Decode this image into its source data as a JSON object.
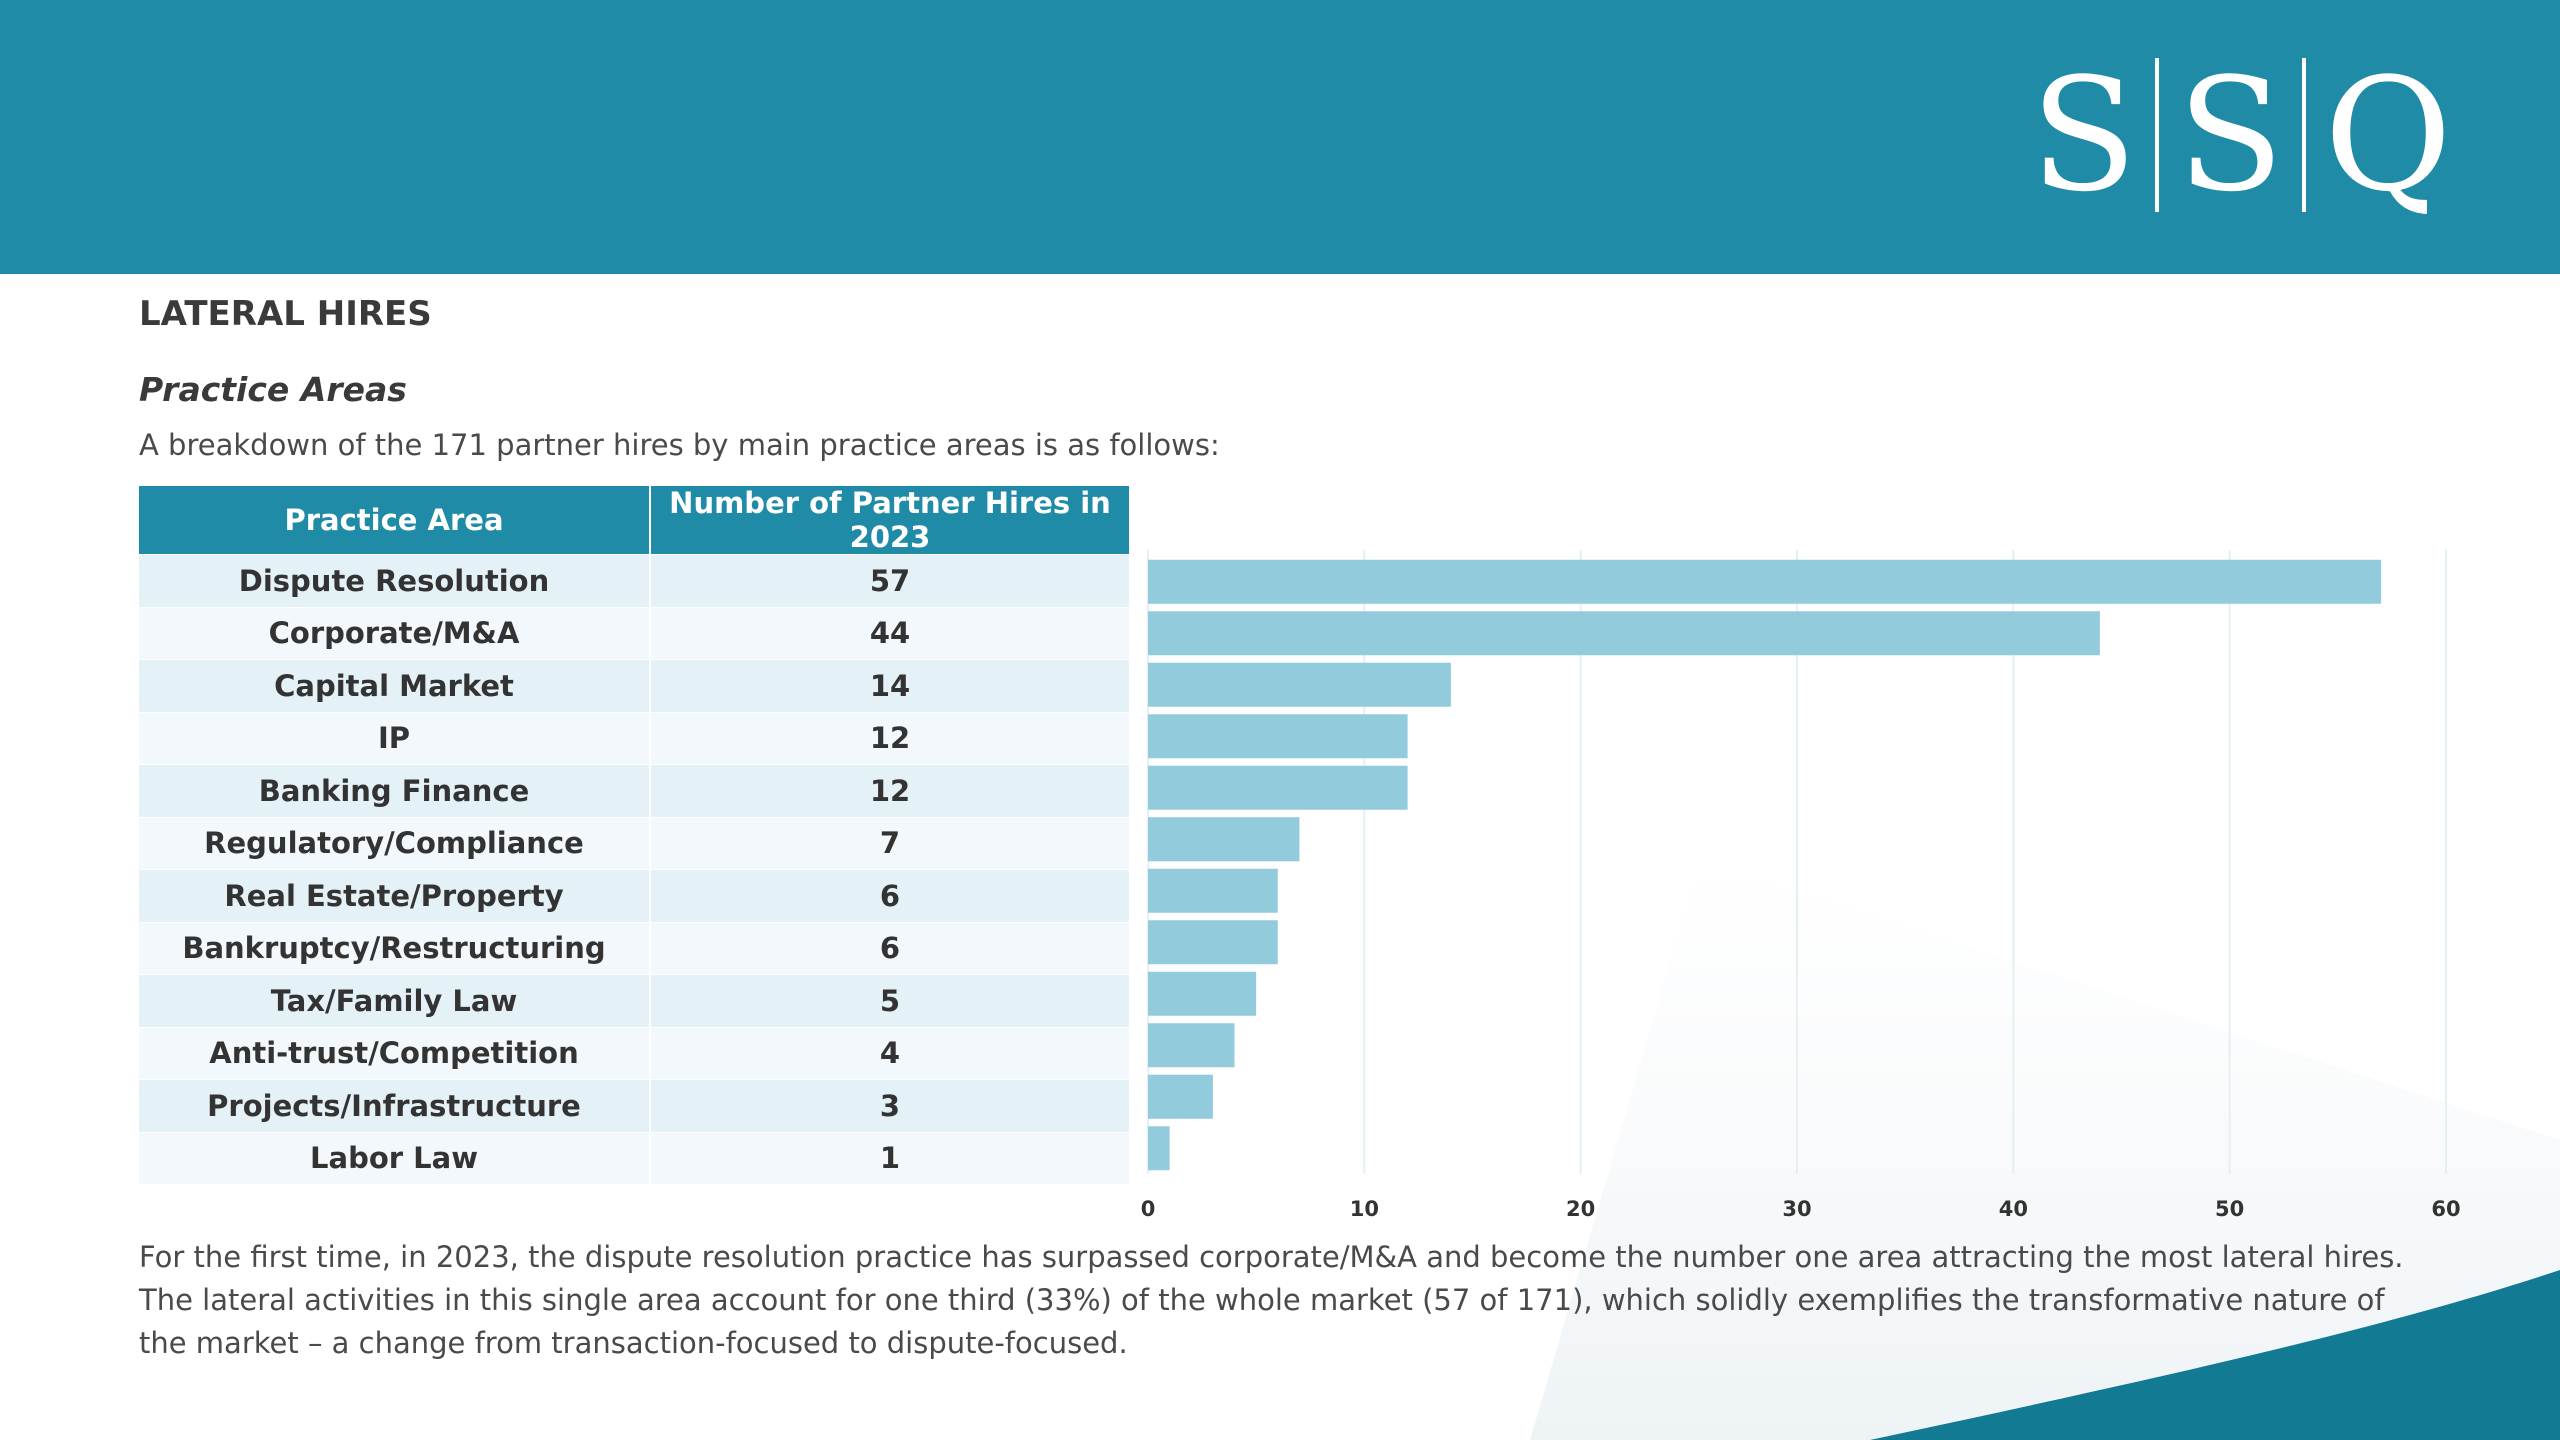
{
  "brand": {
    "logo_letters": [
      "S",
      "S",
      "Q"
    ],
    "header_color": "#1f8ba6"
  },
  "section_title": "LATERAL HIRES",
  "sub_title": "Practice Areas",
  "intro": "A breakdown of the 171 partner hires by main practice areas is as follows:",
  "table": {
    "headers": [
      "Practice Area",
      "Number of Partner Hires in 2023"
    ],
    "rows": [
      {
        "area": "Dispute Resolution",
        "count": "57"
      },
      {
        "area": "Corporate/M&A",
        "count": "44"
      },
      {
        "area": "Capital Market",
        "count": "14"
      },
      {
        "area": "IP",
        "count": "12"
      },
      {
        "area": "Banking Finance",
        "count": "12"
      },
      {
        "area": "Regulatory/Compliance",
        "count": "7"
      },
      {
        "area": "Real Estate/Property",
        "count": "6"
      },
      {
        "area": "Bankruptcy/Restructuring",
        "count": "6"
      },
      {
        "area": "Tax/Family Law",
        "count": "5"
      },
      {
        "area": "Anti-trust/Competition",
        "count": "4"
      },
      {
        "area": "Projects/Infrastructure",
        "count": "3"
      },
      {
        "area": "Labor Law",
        "count": "1"
      }
    ]
  },
  "chart_data": {
    "type": "bar",
    "orientation": "horizontal",
    "categories": [
      "Dispute Resolution",
      "Corporate/M&A",
      "Capital Market",
      "IP",
      "Banking Finance",
      "Regulatory/Compliance",
      "Real Estate/Property",
      "Bankruptcy/Restructuring",
      "Tax/Family Law",
      "Anti-trust/Competition",
      "Projects/Infrastructure",
      "Labor Law"
    ],
    "values": [
      57,
      44,
      14,
      12,
      12,
      7,
      6,
      6,
      5,
      4,
      3,
      1
    ],
    "xlim": [
      0,
      60
    ],
    "xticks": [
      "0",
      "10",
      "20",
      "30",
      "40",
      "50",
      "60"
    ],
    "grid": true,
    "bar_color": "#92cbdc",
    "grid_color": "#e3f0f4"
  },
  "footer": "For the first time, in 2023, the dispute resolution practice has surpassed corporate/M&A and become the number one area attracting the most lateral hires. The lateral activities in this single area account for one third (33%) of the whole market (57 of 171), which solidly exemplifies the transformative nature of the market – a change from transaction-focused to dispute-focused."
}
